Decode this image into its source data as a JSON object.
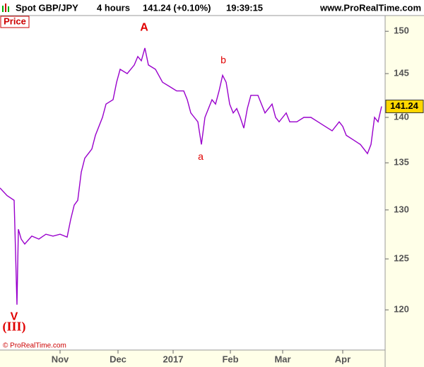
{
  "header": {
    "symbol": "Spot GBP/JPY",
    "timeframe": "4 hours",
    "quote": "141.24 (+0.10%)",
    "time": "19:39:15",
    "site": "www.ProRealTime.com"
  },
  "panel_label": "Price",
  "copyright": "© ProRealTime.com",
  "chart_data": {
    "type": "line",
    "log": true,
    "grid": false,
    "x": [
      0,
      10,
      20,
      24,
      26,
      30,
      35,
      45,
      55,
      65,
      75,
      85,
      95,
      100,
      105,
      110,
      115,
      120,
      130,
      135,
      145,
      150,
      160,
      165,
      170,
      180,
      190,
      195,
      200,
      205,
      210,
      220,
      230,
      240,
      250,
      260,
      265,
      270,
      275,
      280,
      285,
      290,
      295,
      300,
      305,
      310,
      315,
      320,
      325,
      330,
      335,
      340,
      345,
      350,
      355,
      360,
      365,
      370,
      375,
      380,
      385,
      390,
      395,
      400,
      405,
      410,
      420,
      430,
      440,
      450,
      460,
      470,
      480,
      485,
      490,
      500,
      510,
      520,
      525,
      530,
      535,
      540
    ],
    "series": [
      {
        "name": "Spot GBP/JPY",
        "color": "#9900cc",
        "values": [
          132.3,
          131.5,
          131,
          120.5,
          128,
          127,
          126.5,
          127.3,
          127,
          127.5,
          127.3,
          127.5,
          127.2,
          129,
          130.5,
          131,
          134,
          135.5,
          136.5,
          138,
          140,
          141.5,
          142,
          144,
          145.5,
          145,
          146,
          147,
          146.5,
          148,
          146,
          145.5,
          144,
          143.5,
          143,
          143,
          142,
          140.5,
          140,
          139.5,
          137,
          140,
          141,
          142,
          141.5,
          143,
          144.8,
          144,
          141.5,
          140.5,
          141,
          140,
          138.8,
          141,
          142.5,
          142.5,
          142.5,
          141.5,
          140.5,
          141,
          141.5,
          140,
          139.5,
          140,
          140.5,
          139.5,
          139.5,
          140,
          140,
          139.5,
          139,
          138.5,
          139.5,
          139,
          138,
          137.5,
          137,
          136,
          137,
          140,
          139.5,
          141.24
        ]
      }
    ],
    "last_label": "141.24",
    "xlim": [
      0,
      545
    ],
    "xticks": [
      {
        "value": 85,
        "label": "Nov"
      },
      {
        "value": 167,
        "label": "Dec"
      },
      {
        "value": 245,
        "label": "2017"
      },
      {
        "value": 326,
        "label": "Feb"
      },
      {
        "value": 400,
        "label": "Mar"
      },
      {
        "value": 485,
        "label": "Apr"
      }
    ],
    "ylim": [
      116.2,
      151.9
    ],
    "yticks": [
      120,
      125,
      130,
      135,
      140,
      145,
      150
    ],
    "annotations": [
      {
        "text": "A",
        "x": 204,
        "y": 150.4,
        "color": "#e00000",
        "bold": true,
        "size": 16
      },
      {
        "text": "b",
        "x": 316,
        "y": 146.5,
        "color": "#e00000",
        "bold": false,
        "size": 14
      },
      {
        "text": "a",
        "x": 284,
        "y": 135.6,
        "color": "#e00000",
        "bold": false,
        "size": 14
      },
      {
        "text": "V",
        "x": 20,
        "y": 119.3,
        "color": "#e00000",
        "bold": true,
        "size": 16
      },
      {
        "text": "(III)",
        "x": 20,
        "y": 118.3,
        "color": "#e00000",
        "bold": true,
        "size": 18
      }
    ]
  }
}
